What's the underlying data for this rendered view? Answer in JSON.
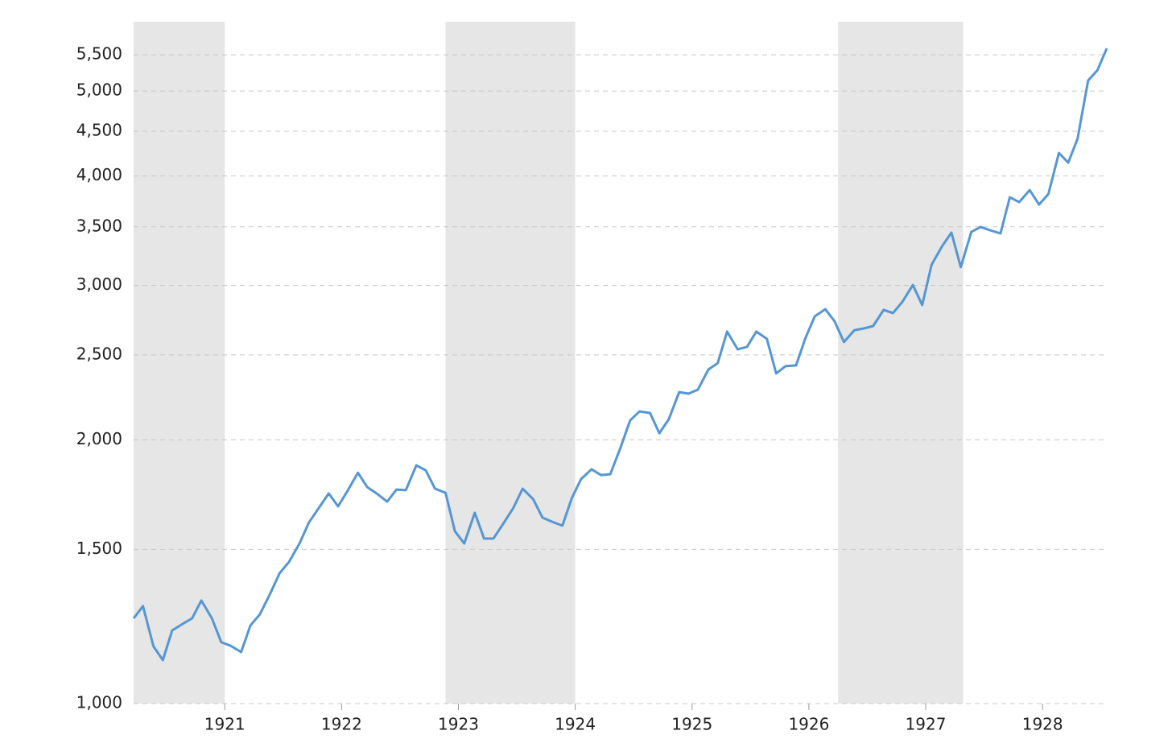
{
  "chart_data": {
    "type": "line",
    "yscale": "log",
    "grid": true,
    "color": "#5596d3",
    "shading_color": "#e6e6e6",
    "shading": [
      [
        1920.22,
        1921.0
      ],
      [
        1922.89,
        1924.0
      ],
      [
        1926.25,
        1927.32
      ]
    ],
    "xlim": [
      1920.22,
      1928.55
    ],
    "xticks": [
      1921,
      1922,
      1923,
      1924,
      1925,
      1926,
      1927,
      1928
    ],
    "ylim": [
      1000,
      6000
    ],
    "yticks": [
      {
        "value": 1000,
        "label": "1,000"
      },
      {
        "value": 1500,
        "label": "1,500"
      },
      {
        "value": 2000,
        "label": "2,000"
      },
      {
        "value": 2500,
        "label": "2,500"
      },
      {
        "value": 3000,
        "label": "3,000"
      },
      {
        "value": 3500,
        "label": "3,500"
      },
      {
        "value": 4000,
        "label": "4,000"
      },
      {
        "value": 4500,
        "label": "4,500"
      },
      {
        "value": 5000,
        "label": "5,000"
      },
      {
        "value": 5500,
        "label": "5,500"
      }
    ],
    "x": [
      1920.22,
      1920.3,
      1920.39,
      1920.47,
      1920.55,
      1920.64,
      1920.72,
      1920.8,
      1920.89,
      1920.97,
      1921.05,
      1921.14,
      1921.22,
      1921.3,
      1921.39,
      1921.47,
      1921.55,
      1921.64,
      1921.72,
      1921.8,
      1921.89,
      1921.97,
      1922.05,
      1922.14,
      1922.22,
      1922.3,
      1922.39,
      1922.47,
      1922.55,
      1922.64,
      1922.72,
      1922.8,
      1922.89,
      1922.97,
      1923.05,
      1923.14,
      1923.22,
      1923.3,
      1923.39,
      1923.47,
      1923.55,
      1923.64,
      1923.72,
      1923.8,
      1923.89,
      1923.97,
      1924.05,
      1924.14,
      1924.22,
      1924.3,
      1924.39,
      1924.47,
      1924.55,
      1924.64,
      1924.72,
      1924.8,
      1924.89,
      1924.97,
      1925.05,
      1925.14,
      1925.22,
      1925.3,
      1925.39,
      1925.47,
      1925.55,
      1925.64,
      1925.72,
      1925.8,
      1925.89,
      1925.97,
      1926.05,
      1926.14,
      1926.22,
      1926.3,
      1926.39,
      1926.47,
      1926.55,
      1926.64,
      1926.72,
      1926.8,
      1926.89,
      1926.97,
      1927.05,
      1927.14,
      1927.22,
      1927.3,
      1927.39,
      1927.47,
      1927.55,
      1927.64,
      1927.72,
      1927.8,
      1927.89,
      1927.97,
      1928.05,
      1928.14,
      1928.22,
      1928.3,
      1928.39,
      1928.47,
      1928.55
    ],
    "values": [
      1251,
      1292,
      1162,
      1121,
      1212,
      1233,
      1251,
      1311,
      1251,
      1175,
      1164,
      1145,
      1228,
      1264,
      1336,
      1409,
      1451,
      1523,
      1609,
      1668,
      1737,
      1679,
      1748,
      1834,
      1766,
      1737,
      1700,
      1755,
      1752,
      1870,
      1846,
      1759,
      1740,
      1573,
      1523,
      1651,
      1543,
      1543,
      1609,
      1672,
      1759,
      1711,
      1630,
      1613,
      1596,
      1715,
      1804,
      1851,
      1823,
      1827,
      1963,
      2105,
      2155,
      2146,
      2035,
      2110,
      2267,
      2258,
      2282,
      2406,
      2447,
      2658,
      2537,
      2553,
      2658,
      2608,
      2381,
      2427,
      2432,
      2612,
      2766,
      2819,
      2731,
      2586,
      2668,
      2680,
      2697,
      2814,
      2790,
      2874,
      3004,
      2850,
      3168,
      3326,
      3447,
      3148,
      3454,
      3499,
      3469,
      3440,
      3783,
      3735,
      3855,
      3711,
      3815,
      4250,
      4143,
      4414,
      5140,
      5284,
      5595
    ]
  }
}
